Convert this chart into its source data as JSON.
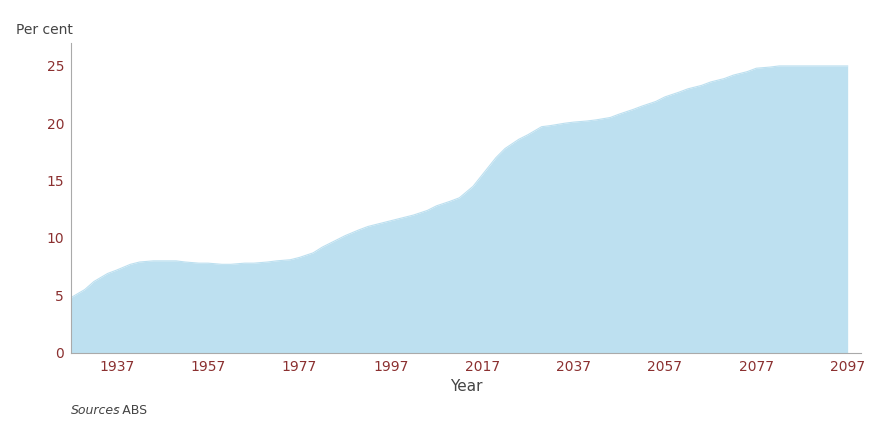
{
  "x": [
    1927,
    1930,
    1932,
    1935,
    1937,
    1940,
    1942,
    1945,
    1947,
    1950,
    1952,
    1955,
    1957,
    1960,
    1962,
    1965,
    1967,
    1970,
    1972,
    1975,
    1977,
    1980,
    1982,
    1985,
    1987,
    1990,
    1992,
    1995,
    1997,
    2000,
    2002,
    2005,
    2007,
    2010,
    2012,
    2015,
    2017,
    2020,
    2022,
    2025,
    2027,
    2030,
    2032,
    2035,
    2037,
    2040,
    2042,
    2045,
    2047,
    2050,
    2052,
    2055,
    2057,
    2060,
    2062,
    2065,
    2067,
    2070,
    2072,
    2075,
    2077,
    2080,
    2082,
    2085,
    2087,
    2090,
    2092,
    2095,
    2097
  ],
  "y": [
    4.8,
    5.5,
    6.2,
    6.9,
    7.2,
    7.7,
    7.9,
    8.0,
    8.0,
    8.0,
    7.9,
    7.8,
    7.8,
    7.7,
    7.7,
    7.8,
    7.8,
    7.9,
    8.0,
    8.1,
    8.3,
    8.7,
    9.2,
    9.8,
    10.2,
    10.7,
    11.0,
    11.3,
    11.5,
    11.8,
    12.0,
    12.4,
    12.8,
    13.2,
    13.5,
    14.5,
    15.5,
    17.0,
    17.8,
    18.6,
    19.0,
    19.7,
    19.8,
    20.0,
    20.1,
    20.2,
    20.3,
    20.5,
    20.8,
    21.2,
    21.5,
    21.9,
    22.3,
    22.7,
    23.0,
    23.3,
    23.6,
    23.9,
    24.2,
    24.5,
    24.8,
    24.9,
    25.0,
    25.0,
    25.0,
    25.0,
    25.0,
    25.0,
    25.0
  ],
  "fill_color": "#bde0f0",
  "line_color": "#bde0f0",
  "background_color": "#ffffff",
  "xlabel": "Year",
  "ylabel": "Per cent",
  "xticks": [
    1937,
    1957,
    1977,
    1997,
    2017,
    2037,
    2057,
    2077,
    2097
  ],
  "yticks": [
    0,
    5,
    10,
    15,
    20,
    25
  ],
  "ylim": [
    0,
    27
  ],
  "xlim": [
    1927,
    2100
  ],
  "source_italic": "Sources",
  "source_regular": ": ABS",
  "tick_label_color": "#8b3030",
  "label_color": "#444444"
}
